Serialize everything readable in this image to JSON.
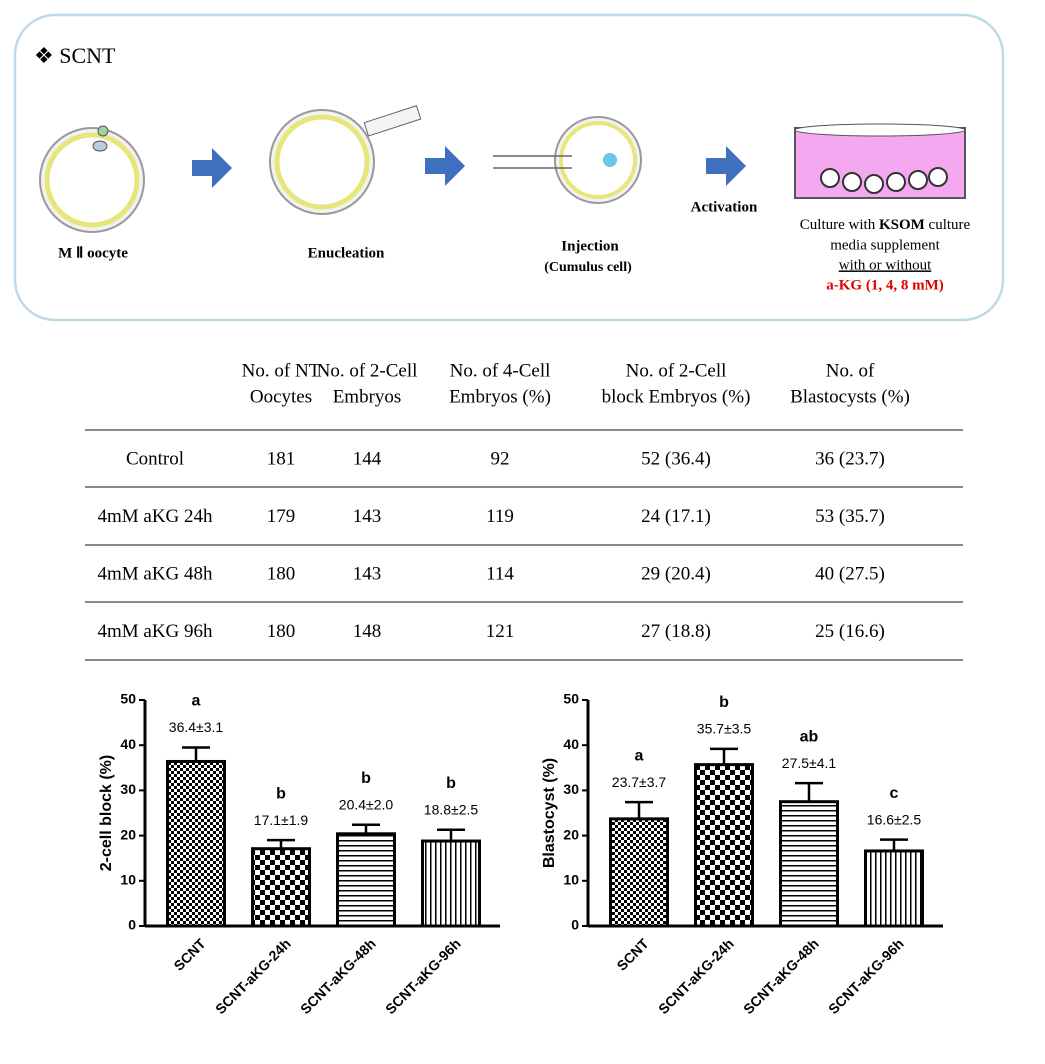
{
  "diagram": {
    "title": "❖ SCNT",
    "steps": [
      "M Ⅱ oocyte",
      "Enucleation",
      "Injection",
      "(Cumulus cell)",
      "Activation"
    ],
    "culture": {
      "line1_a": "Culture with ",
      "line1_b": "KSOM",
      "line1_c": " culture",
      "line2": "media supplement",
      "line3": "with or without",
      "line4": "a-KG (1, 4, 8 mM)"
    }
  },
  "table": {
    "header": [
      [
        "No. of NT",
        "Oocytes"
      ],
      [
        "No. of 2-Cell",
        "Embryos"
      ],
      [
        "No. of 4-Cell",
        "Embryos (%)"
      ],
      [
        "No. of 2-Cell",
        "block Embryos (%)"
      ],
      [
        "No. of",
        "Blastocysts (%)"
      ]
    ],
    "rows": [
      [
        "Control",
        "181",
        "144",
        "92",
        "52 (36.4)",
        "36 (23.7)"
      ],
      [
        "4mM aKG 24h",
        "179",
        "143",
        "119",
        "24 (17.1)",
        "53 (35.7)"
      ],
      [
        "4mM aKG 48h",
        "180",
        "143",
        "114",
        "29 (20.4)",
        "40 (27.5)"
      ],
      [
        "4mM aKG 96h",
        "180",
        "148",
        "121",
        "27 (18.8)",
        "25 (16.6)"
      ]
    ]
  },
  "chart_data": [
    {
      "type": "bar",
      "ylabel": "2-cell block (%)",
      "categories": [
        "SCNT",
        "SCNT-aKG-24h",
        "SCNT-aKG-48h",
        "SCNT-aKG-96h"
      ],
      "values": [
        36.4,
        17.1,
        20.4,
        18.8
      ],
      "errors": [
        3.1,
        1.9,
        2.0,
        2.5
      ],
      "value_labels": [
        "36.4±3.1",
        "17.1±1.9",
        "20.4±2.0",
        "18.8±2.5"
      ],
      "letters": [
        "a",
        "b",
        "b",
        "b"
      ],
      "patterns": [
        "checker-small",
        "checker-large",
        "hlines",
        "vlines"
      ],
      "ylim": [
        0,
        50
      ],
      "yticks": [
        0,
        10,
        20,
        30,
        40,
        50
      ]
    },
    {
      "type": "bar",
      "ylabel": "Blastocyst (%)",
      "categories": [
        "SCNT",
        "SCNT-aKG-24h",
        "SCNT-aKG-48h",
        "SCNT-aKG-96h"
      ],
      "values": [
        23.7,
        35.7,
        27.5,
        16.6
      ],
      "errors": [
        3.7,
        3.5,
        4.1,
        2.5
      ],
      "value_labels": [
        "23.7±3.7",
        "35.7±3.5",
        "27.5±4.1",
        "16.6±2.5"
      ],
      "letters": [
        "a",
        "b",
        "ab",
        "c"
      ],
      "patterns": [
        "checker-small",
        "checker-large",
        "hlines",
        "vlines"
      ],
      "ylim": [
        0,
        50
      ],
      "yticks": [
        0,
        10,
        20,
        30,
        40,
        50
      ]
    }
  ]
}
